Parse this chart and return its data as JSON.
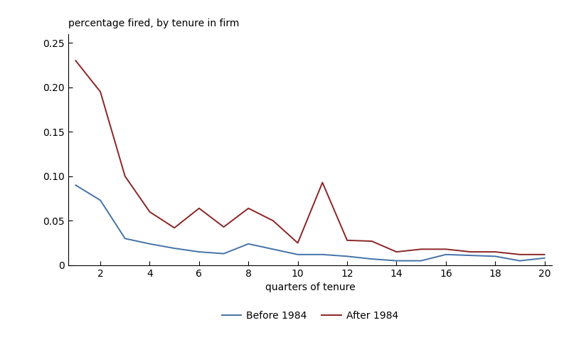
{
  "x": [
    1,
    2,
    3,
    4,
    5,
    6,
    7,
    8,
    9,
    10,
    11,
    12,
    13,
    14,
    15,
    16,
    17,
    18,
    19,
    20
  ],
  "before_1984": [
    0.09,
    0.073,
    0.03,
    0.024,
    0.019,
    0.015,
    0.013,
    0.024,
    0.018,
    0.012,
    0.012,
    0.01,
    0.007,
    0.005,
    0.005,
    0.012,
    0.011,
    0.01,
    0.005,
    0.008
  ],
  "after_1984": [
    0.23,
    0.195,
    0.1,
    0.06,
    0.042,
    0.064,
    0.043,
    0.064,
    0.05,
    0.025,
    0.093,
    0.028,
    0.027,
    0.015,
    0.018,
    0.018,
    0.015,
    0.015,
    0.012,
    0.012
  ],
  "before_color": "#4472a8",
  "after_color": "#8b2525",
  "title": "percentage fired, by tenure in firm",
  "xlabel": "quarters of tenure",
  "ylabel": "",
  "ylim": [
    0,
    0.26
  ],
  "xlim": [
    1,
    20
  ],
  "yticks": [
    0,
    0.05,
    0.1,
    0.15,
    0.2,
    0.25
  ],
  "xticks": [
    2,
    4,
    6,
    8,
    10,
    12,
    14,
    16,
    18,
    20
  ],
  "legend_before": "Before 1984",
  "legend_after": "After 1984",
  "bg_color": "#ffffff",
  "linewidth": 1.4,
  "title_fontsize": 10,
  "tick_fontsize": 10,
  "xlabel_fontsize": 10,
  "legend_fontsize": 10
}
